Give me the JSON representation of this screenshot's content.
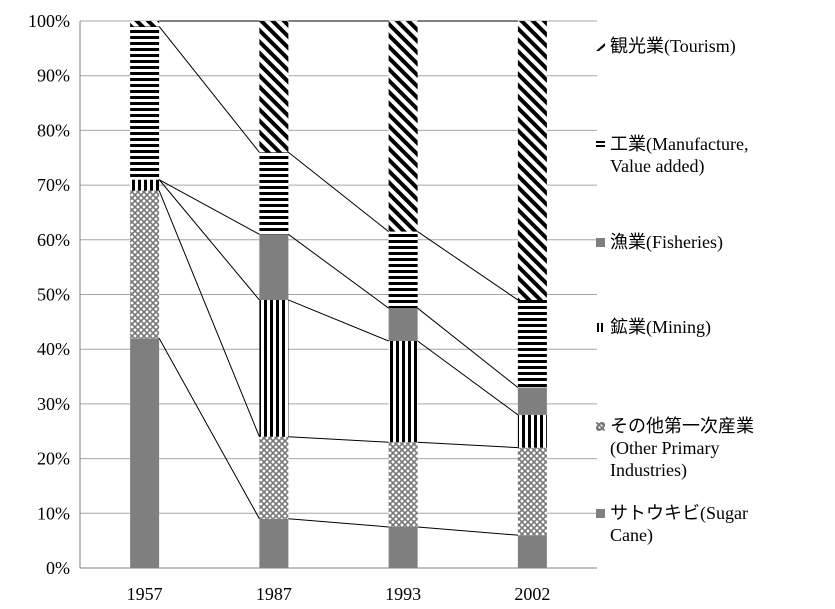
{
  "chart_data": {
    "type": "bar",
    "stacked": true,
    "normalized": true,
    "categories": [
      "1957",
      "1987",
      "1993",
      "2002"
    ],
    "series": [
      {
        "name": "サトウキビ(Sugar Cane)",
        "values": [
          42,
          9,
          7.5,
          6
        ],
        "pattern": "solid"
      },
      {
        "name": "その他第一次産業(Other Primary Industries)",
        "values": [
          27,
          15,
          15.5,
          16
        ],
        "pattern": "checker"
      },
      {
        "name": "鉱業(Mining)",
        "values": [
          2,
          25,
          18.5,
          6
        ],
        "pattern": "vertical"
      },
      {
        "name": "漁業(Fisheries)",
        "values": [
          0,
          12,
          6,
          5
        ],
        "pattern": "solid"
      },
      {
        "name": "工業(Manufacture, Value added)",
        "values": [
          28,
          15,
          14,
          16
        ],
        "pattern": "horizontal"
      },
      {
        "name": "観光業(Tourism)",
        "values": [
          1,
          24,
          38.5,
          51
        ],
        "pattern": "diagonal"
      }
    ],
    "yticks": [
      "0%",
      "10%",
      "20%",
      "30%",
      "40%",
      "50%",
      "60%",
      "70%",
      "80%",
      "90%",
      "100%"
    ],
    "ylim": [
      0,
      100
    ],
    "grid": true,
    "series_lines": true,
    "legend_position": "right",
    "legend_order": [
      "観光業(Tourism)",
      "工業(Manufacture, Value added)",
      "漁業(Fisheries)",
      "鉱業(Mining)",
      "その他第一次産業(Other Primary Industries)",
      "サトウキビ(Sugar Cane)"
    ],
    "title": "",
    "xlabel": "",
    "ylabel": ""
  },
  "legend": {
    "tourism": "観光業(Tourism)",
    "manufacture": "工業(Manufacture,\nValue added)",
    "fisheries": "漁業(Fisheries)",
    "mining": "鉱業(Mining)",
    "other_primary": "その他第一次産業\n(Other Primary\nIndustries)",
    "sugar_cane": "サトウキビ(Sugar\nCane)"
  },
  "colors": {
    "bar_fill": "#7f7f7f",
    "pattern_ink": "#000000",
    "grid": "#a6a6a6",
    "axis": "#808080"
  }
}
